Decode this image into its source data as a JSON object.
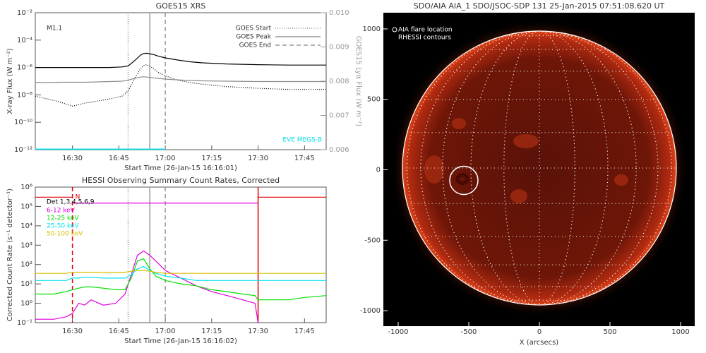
{
  "chart_data": [
    {
      "type": "line",
      "title": "GOES15 XRS",
      "xlabel": "Start Time (26-Jan-15 16:16:01)",
      "ylabel": "X-ray Flux (W m⁻²)",
      "y2label": "GOES15 Lyα Flux (W m⁻²)",
      "annotation": "M1.1",
      "log_y": true,
      "xlim": [
        "16:18",
        "17:52"
      ],
      "xticks": [
        "16:30",
        "16:45",
        "17:00",
        "17:15",
        "17:30",
        "17:45"
      ],
      "ylim": [
        1e-12,
        0.01
      ],
      "yticks": [
        {
          "value": 1e-12,
          "label": "10⁻¹²"
        },
        {
          "value": 1e-10,
          "label": "10⁻¹⁰"
        },
        {
          "value": 1e-08,
          "label": "10⁻⁸"
        },
        {
          "value": 1e-06,
          "label": "10⁻⁶"
        },
        {
          "value": 0.0001,
          "label": "10⁻⁴"
        },
        {
          "value": 0.01,
          "label": "10⁻²"
        }
      ],
      "y2lim": [
        0.006,
        0.01
      ],
      "y2ticks": [
        0.006,
        0.007,
        0.008,
        0.009,
        {
          "value": 0.01,
          "label": "0.010"
        }
      ],
      "x": [
        "16:18",
        "16:22",
        "16:26",
        "16:30",
        "16:34",
        "16:38",
        "16:42",
        "16:46",
        "16:48",
        "16:50",
        "16:52",
        "16:53",
        "16:54",
        "16:56",
        "16:58",
        "17:00",
        "17:04",
        "17:08",
        "17:12",
        "17:20",
        "17:30",
        "17:40",
        "17:52"
      ],
      "series": [
        {
          "color": "#000000",
          "dash": "solid",
          "values": [
            1e-06,
            1e-06,
            1e-06,
            1e-06,
            1e-06,
            1e-06,
            1e-06,
            1.1e-06,
            1.3e-06,
            3e-06,
            8e-06,
            1.05e-05,
            1.1e-05,
            9e-06,
            6.5e-06,
            5e-06,
            3.5e-06,
            2.6e-06,
            2.2e-06,
            1.8e-06,
            1.6e-06,
            1.5e-06,
            1.5e-06
          ]
        },
        {
          "color": "#000000",
          "dash": "dotted",
          "values": [
            8e-09,
            5e-09,
            3e-09,
            1.5e-09,
            2.5e-09,
            3.5e-09,
            5e-09,
            8e-09,
            2e-08,
            1.5e-07,
            8e-07,
            1.4e-06,
            1.6e-06,
            9e-07,
            4e-07,
            2.5e-07,
            1.2e-07,
            8e-08,
            6e-08,
            4e-08,
            3e-08,
            2.5e-08,
            2.5e-08
          ]
        },
        {
          "color": "#8c8c8c",
          "dash": "solid",
          "axis": "y2",
          "values": [
            0.00796,
            0.00796,
            0.00797,
            0.00797,
            0.00797,
            0.00798,
            0.00799,
            0.008,
            0.00803,
            0.00808,
            0.00812,
            0.00813,
            0.00812,
            0.0081,
            0.00808,
            0.00806,
            0.00804,
            0.00802,
            0.00801,
            0.008,
            0.00799,
            0.00799,
            0.00799
          ]
        },
        {
          "name": "EVE MEGS-B",
          "color": "#00e0e8",
          "dash": "solid",
          "width": 3,
          "values": [
            1e-12,
            1e-12,
            1e-12,
            1e-12,
            1e-12,
            1e-12,
            1e-12,
            1e-12,
            1e-12,
            1e-12,
            1e-12,
            1e-12,
            1e-12,
            1e-12,
            1e-12,
            1e-12,
            null,
            null,
            null,
            null,
            null,
            null,
            null
          ]
        }
      ],
      "vlines": [
        {
          "name": "GOES Start",
          "x": "16:48",
          "dash": "dotted",
          "color": "#999999"
        },
        {
          "name": "GOES Peak",
          "x": "16:55",
          "dash": "solid",
          "color": "#999999"
        },
        {
          "name": "GOES End",
          "x": "17:00",
          "dash": "dashed",
          "color": "#999999"
        }
      ]
    },
    {
      "type": "line",
      "title": "HESSI Observing Summary Count Rates, Corrected",
      "xlabel": "Start Time (26-Jan-15 16:16:02)",
      "ylabel": "Corrected Count Rate (s⁻¹ detector⁻¹)",
      "legend_title": "Det 1,3,4,5,6,9",
      "annotation": "N",
      "log_y": true,
      "xlim": [
        "16:18",
        "17:52"
      ],
      "xticks": [
        "16:30",
        "16:45",
        "17:00",
        "17:15",
        "17:30",
        "17:45"
      ],
      "ylim": [
        0.1,
        1000000
      ],
      "yticks": [
        {
          "value": 0.1,
          "label": "10⁻¹"
        },
        {
          "value": 1,
          "label": "10⁰"
        },
        {
          "value": 10,
          "label": "10¹"
        },
        {
          "value": 100,
          "label": "10²"
        },
        {
          "value": 1000,
          "label": "10³"
        },
        {
          "value": 10000,
          "label": "10⁴"
        },
        {
          "value": 100000,
          "label": "10⁵"
        },
        {
          "value": 1000000,
          "label": "10⁶"
        }
      ],
      "x": [
        "16:18",
        "16:24",
        "16:28",
        "16:30",
        "16:32",
        "16:34",
        "16:36",
        "16:40",
        "16:44",
        "16:47",
        "16:49",
        "16:51",
        "16:53",
        "16:55",
        "16:57",
        "17:00",
        "17:05",
        "17:10",
        "17:15",
        "17:20",
        "17:25",
        "17:29",
        "17:30",
        "17:35",
        "17:40",
        "17:45",
        "17:52"
      ],
      "series": [
        {
          "name": "6-12 keV",
          "color": "#e000e0",
          "values": [
            0.15,
            0.15,
            0.2,
            0.3,
            1.0,
            0.8,
            1.5,
            0.8,
            1.0,
            3,
            30,
            300,
            500,
            300,
            150,
            50,
            20,
            8,
            4,
            2.5,
            1.5,
            1.0,
            0.1,
            null,
            null,
            null,
            null
          ]
        },
        {
          "name": "12-25 keV",
          "color": "#00e000",
          "values": [
            3,
            3,
            4,
            5,
            6,
            7,
            7,
            6,
            5,
            5,
            20,
            150,
            200,
            60,
            25,
            15,
            10,
            8,
            5,
            4,
            3,
            2.5,
            1.5,
            1.5,
            1.5,
            2,
            2.5
          ]
        },
        {
          "name": "25-50 keV",
          "color": "#00e0f0",
          "values": [
            15,
            15,
            15,
            20,
            20,
            22,
            22,
            20,
            20,
            20,
            30,
            60,
            80,
            50,
            35,
            25,
            20,
            15,
            15,
            15,
            15,
            15,
            15,
            15,
            15,
            15,
            15
          ]
        },
        {
          "name": "50-100 keV",
          "color": "#d8c000",
          "values": [
            35,
            35,
            35,
            40,
            40,
            40,
            40,
            40,
            40,
            40,
            45,
            50,
            50,
            45,
            40,
            35,
            35,
            35,
            35,
            35,
            35,
            35,
            35,
            35,
            35,
            35,
            35
          ]
        },
        {
          "color": "#e00000",
          "values": [
            300000,
            300000,
            300000,
            300000,
            null,
            null,
            null,
            null,
            null,
            null,
            null,
            null,
            null,
            null,
            null,
            null,
            null,
            null,
            null,
            null,
            null,
            null,
            300000,
            300000,
            300000,
            300000,
            300000
          ]
        },
        {
          "color": "#e000e0",
          "values": [
            null,
            null,
            null,
            150000,
            150000,
            150000,
            150000,
            150000,
            150000,
            150000,
            150000,
            150000,
            150000,
            150000,
            150000,
            150000,
            150000,
            150000,
            150000,
            150000,
            150000,
            150000,
            150000,
            null,
            null,
            null,
            null
          ]
        }
      ],
      "vlines": [
        {
          "x": "16:30",
          "dash": "dashed",
          "color": "#e00000"
        },
        {
          "x": "17:30",
          "dash": "solid",
          "color": "#e00000"
        },
        {
          "x": "16:48",
          "dash": "dotted",
          "color": "#999999"
        },
        {
          "x": "16:55",
          "dash": "solid",
          "color": "#999999"
        },
        {
          "x": "17:00",
          "dash": "dashed",
          "color": "#999999"
        }
      ]
    },
    {
      "type": "image",
      "title": "SDO/AIA AIA_1 SDO/JSOC-SDP 131 25-Jan-2015 07:51:08.620 UT",
      "xlabel": "X (arcsecs)",
      "annotation": "RHESSI contours",
      "xlim": [
        -1105,
        1100
      ],
      "ylim": [
        -1110,
        1115
      ],
      "xticks": [
        -1000,
        -500,
        0,
        500,
        1000
      ],
      "yticks": [
        -1000,
        -500,
        0,
        500,
        1000
      ],
      "series": [
        {
          "name": "AIA flare location",
          "color": "#ffffff",
          "x": [
            -535
          ],
          "y": [
            -75
          ]
        }
      ]
    }
  ]
}
